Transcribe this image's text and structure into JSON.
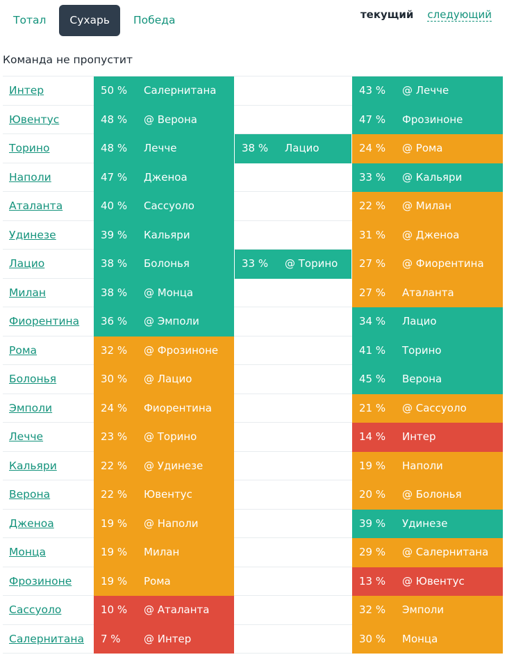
{
  "tabs": [
    {
      "label": "Тотал"
    },
    {
      "label": "Сухарь",
      "active": true
    },
    {
      "label": "Победа"
    }
  ],
  "period": {
    "current": "текущий",
    "next": "следующий"
  },
  "heading": "Команда не пропустит",
  "colors": {
    "green": "#1fb393",
    "orange": "#f1a01b",
    "red": "#e04b3d",
    "link": "#14937c",
    "active_tab": "#2f3d4c"
  },
  "rows": [
    {
      "team": "Интер",
      "m1": {
        "pct": "50 %",
        "opp": "Салернитана",
        "color": "green"
      },
      "m2": null,
      "m3": {
        "pct": "43 %",
        "opp": "@ Лечче",
        "color": "green"
      }
    },
    {
      "team": "Ювентус",
      "m1": {
        "pct": "48 %",
        "opp": "@ Верона",
        "color": "green"
      },
      "m2": null,
      "m3": {
        "pct": "47 %",
        "opp": "Фрозиноне",
        "color": "green"
      }
    },
    {
      "team": "Торино",
      "m1": {
        "pct": "48 %",
        "opp": "Лечче",
        "color": "green"
      },
      "m2": {
        "pct": "38 %",
        "opp": "Лацио",
        "color": "green"
      },
      "m3": {
        "pct": "24 %",
        "opp": "@ Рома",
        "color": "orange"
      }
    },
    {
      "team": "Наполи",
      "m1": {
        "pct": "47 %",
        "opp": "Дженоа",
        "color": "green"
      },
      "m2": null,
      "m3": {
        "pct": "33 %",
        "opp": "@ Кальяри",
        "color": "green"
      }
    },
    {
      "team": "Аталанта",
      "m1": {
        "pct": "40 %",
        "opp": "Сассуоло",
        "color": "green"
      },
      "m2": null,
      "m3": {
        "pct": "22 %",
        "opp": "@ Милан",
        "color": "orange"
      }
    },
    {
      "team": "Удинезе",
      "m1": {
        "pct": "39 %",
        "opp": "Кальяри",
        "color": "green"
      },
      "m2": null,
      "m3": {
        "pct": "31 %",
        "opp": "@ Дженоа",
        "color": "orange"
      }
    },
    {
      "team": "Лацио",
      "m1": {
        "pct": "38 %",
        "opp": "Болонья",
        "color": "green"
      },
      "m2": {
        "pct": "33 %",
        "opp": "@ Торино",
        "color": "green"
      },
      "m3": {
        "pct": "27 %",
        "opp": "@ Фиорентина",
        "color": "orange"
      }
    },
    {
      "team": "Милан",
      "m1": {
        "pct": "38 %",
        "opp": "@ Монца",
        "color": "green"
      },
      "m2": null,
      "m3": {
        "pct": "27 %",
        "opp": "Аталанта",
        "color": "orange"
      }
    },
    {
      "team": "Фиорентина",
      "m1": {
        "pct": "36 %",
        "opp": "@ Эмполи",
        "color": "green"
      },
      "m2": null,
      "m3": {
        "pct": "34 %",
        "opp": "Лацио",
        "color": "green"
      }
    },
    {
      "team": "Рома",
      "m1": {
        "pct": "32 %",
        "opp": "@ Фрозиноне",
        "color": "orange"
      },
      "m2": null,
      "m3": {
        "pct": "41 %",
        "opp": "Торино",
        "color": "green"
      }
    },
    {
      "team": "Болонья",
      "m1": {
        "pct": "30 %",
        "opp": "@ Лацио",
        "color": "orange"
      },
      "m2": null,
      "m3": {
        "pct": "45 %",
        "opp": "Верона",
        "color": "green"
      }
    },
    {
      "team": "Эмполи",
      "m1": {
        "pct": "24 %",
        "opp": "Фиорентина",
        "color": "orange"
      },
      "m2": null,
      "m3": {
        "pct": "21 %",
        "opp": "@ Сассуоло",
        "color": "orange"
      }
    },
    {
      "team": "Лечче",
      "m1": {
        "pct": "23 %",
        "opp": "@ Торино",
        "color": "orange"
      },
      "m2": null,
      "m3": {
        "pct": "14 %",
        "opp": "Интер",
        "color": "red"
      }
    },
    {
      "team": "Кальяри",
      "m1": {
        "pct": "22 %",
        "opp": "@ Удинезе",
        "color": "orange"
      },
      "m2": null,
      "m3": {
        "pct": "19 %",
        "opp": "Наполи",
        "color": "orange"
      }
    },
    {
      "team": "Верона",
      "m1": {
        "pct": "22 %",
        "opp": "Ювентус",
        "color": "orange"
      },
      "m2": null,
      "m3": {
        "pct": "20 %",
        "opp": "@ Болонья",
        "color": "orange"
      }
    },
    {
      "team": "Дженоа",
      "m1": {
        "pct": "19 %",
        "opp": "@ Наполи",
        "color": "orange"
      },
      "m2": null,
      "m3": {
        "pct": "39 %",
        "opp": "Удинезе",
        "color": "green"
      }
    },
    {
      "team": "Монца",
      "m1": {
        "pct": "19 %",
        "opp": "Милан",
        "color": "orange"
      },
      "m2": null,
      "m3": {
        "pct": "29 %",
        "opp": "@ Салернитана",
        "color": "orange"
      }
    },
    {
      "team": "Фрозиноне",
      "m1": {
        "pct": "19 %",
        "opp": "Рома",
        "color": "orange"
      },
      "m2": null,
      "m3": {
        "pct": "13 %",
        "opp": "@ Ювентус",
        "color": "red"
      }
    },
    {
      "team": "Сассуоло",
      "m1": {
        "pct": "10 %",
        "opp": "@ Аталанта",
        "color": "red"
      },
      "m2": null,
      "m3": {
        "pct": "32 %",
        "opp": "Эмполи",
        "color": "orange"
      }
    },
    {
      "team": "Салернитана",
      "m1": {
        "pct": "7 %",
        "opp": "@ Интер",
        "color": "red"
      },
      "m2": null,
      "m3": {
        "pct": "30 %",
        "opp": "Монца",
        "color": "orange"
      }
    }
  ]
}
